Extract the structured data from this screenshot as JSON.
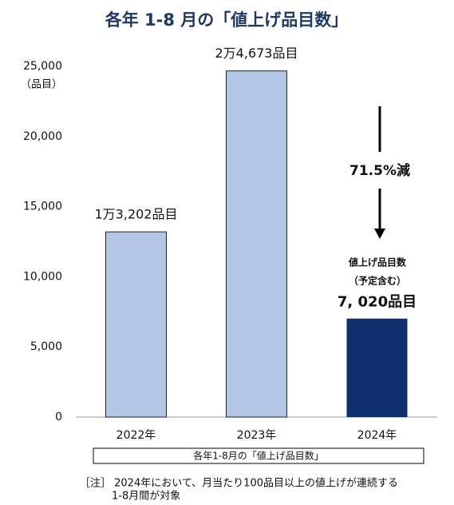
{
  "chart_data": {
    "type": "bar",
    "title": "各年 1-8 月の「値上げ品目数」",
    "y_unit": "（品目）",
    "categories": [
      "2022年",
      "2023年",
      "2024年"
    ],
    "values": [
      13202,
      24673,
      7020
    ],
    "value_labels": [
      "1万3,202品目",
      "2万4,673品目",
      "7, 020品目"
    ],
    "colors": [
      "#b4c7e7",
      "#b4c7e7",
      "#0e2f6b"
    ],
    "ylim": [
      0,
      25000
    ],
    "yticks": [
      0,
      {
        "value": 5000,
        "label": "5,000"
      },
      {
        "value": 10000,
        "label": "10,000"
      },
      {
        "value": 15000,
        "label": "15,000"
      },
      {
        "value": 20000,
        "label": "20,000"
      },
      {
        "value": 25000,
        "label": "25,000"
      }
    ],
    "grid": false,
    "annotations": [
      "71.5%減",
      "値上げ品目数",
      "（予定含む）"
    ],
    "xlabel": "各年1-8月の「値上げ品目数」",
    "note": [
      "［注］ 2024年において、月当たり100品目以上の値上げが連続する",
      "1-8月間が対象"
    ]
  }
}
